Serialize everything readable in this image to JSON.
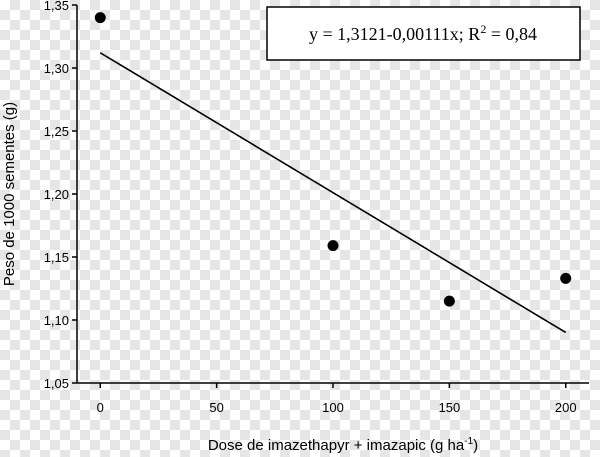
{
  "chart_data": {
    "type": "scatter",
    "title": "",
    "xlabel": "Dose de imazethapyr + imazapic (g ha",
    "xlabel_sup": "-1",
    "xlabel_close": ")",
    "ylabel": "Peso de 1000 sementes (g)",
    "xlim": [
      -10,
      210
    ],
    "ylim": [
      1.05,
      1.35
    ],
    "xticks": [
      0,
      50,
      100,
      150,
      200
    ],
    "xtick_labels": [
      "0",
      "50",
      "100",
      "150",
      "200"
    ],
    "yticks": [
      1.05,
      1.1,
      1.15,
      1.2,
      1.25,
      1.3,
      1.35
    ],
    "ytick_labels": [
      "1,05",
      "1,10",
      "1,15",
      "1,20",
      "1,25",
      "1,30",
      "1,35"
    ],
    "grid": false,
    "series": [
      {
        "x": [
          0,
          100,
          150,
          200
        ],
        "y": [
          1.34,
          1.159,
          1.115,
          1.133
        ]
      }
    ],
    "fit": {
      "intercept": 1.3121,
      "slope": -0.00111,
      "x_range": [
        0,
        200
      ]
    },
    "annotation": {
      "text": "y = 1,3121-0,00111x; R",
      "sup": "2",
      "text_end": " = 0,84",
      "position": "top-right"
    }
  }
}
